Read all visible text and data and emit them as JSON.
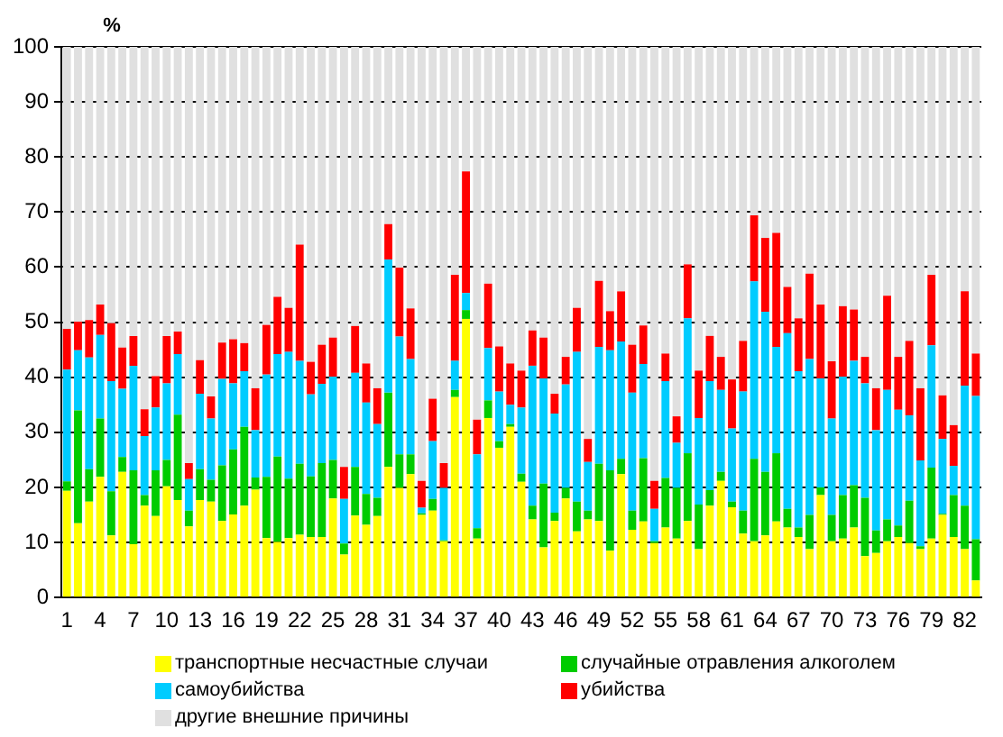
{
  "chart_data": {
    "type": "bar",
    "stacked": true,
    "ylabel": "%",
    "ylim": [
      0,
      100
    ],
    "yticks": [
      0,
      10,
      20,
      30,
      40,
      50,
      60,
      70,
      80,
      90,
      100
    ],
    "grid": "y",
    "legend": "bottom",
    "categories": [
      "1",
      null,
      null,
      "4",
      null,
      null,
      "7",
      null,
      null,
      "10",
      null,
      null,
      "13",
      null,
      null,
      "16",
      null,
      null,
      "19",
      null,
      null,
      "22",
      null,
      null,
      "25",
      null,
      null,
      "28",
      null,
      null,
      "31",
      null,
      null,
      "34",
      null,
      null,
      "37",
      null,
      null,
      "40",
      null,
      null,
      "43",
      null,
      null,
      "46",
      null,
      null,
      "49",
      null,
      null,
      "52",
      null,
      null,
      "55",
      null,
      null,
      "58",
      null,
      null,
      "61",
      null,
      null,
      "64",
      null,
      null,
      "67",
      null,
      null,
      "70",
      null,
      null,
      "73",
      null,
      null,
      "76",
      null,
      null,
      "79",
      null,
      null,
      "82",
      null
    ],
    "series": [
      {
        "name": "транспортные несчастные случаи",
        "color": "#ffff00",
        "values": [
          19.4,
          13.5,
          17.4,
          21.9,
          11.3,
          22.8,
          9.7,
          16.7,
          14.8,
          20.2,
          17.7,
          12.9,
          17.7,
          17.4,
          13.9,
          15.1,
          16.7,
          19.6,
          10.8,
          10.1,
          10.8,
          11.4,
          11.0,
          11.0,
          18.0,
          7.8,
          14.9,
          13.2,
          14.8,
          23.7,
          19.9,
          22.4,
          15.0,
          15.8,
          10.2,
          36.4,
          50.6,
          10.7,
          32.6,
          27.2,
          31.0,
          21.0,
          14.2,
          9.1,
          13.9,
          18.0,
          12.0,
          14.2,
          13.9,
          8.5,
          22.4,
          12.3,
          13.8,
          9.9,
          12.7,
          10.7,
          13.9,
          8.8,
          16.7,
          21.2,
          16.4,
          11.6,
          10.2,
          11.3,
          13.8,
          12.7,
          11.0,
          8.8,
          18.6,
          10.2,
          10.7,
          12.7,
          7.5,
          8.1,
          10.2,
          11.0,
          9.9,
          8.8,
          10.7,
          15.0,
          11.0,
          8.8,
          3.1
        ]
      },
      {
        "name": "случайные отравления алкоголем",
        "color": "#00cc00",
        "values": [
          1.7,
          20.5,
          5.9,
          10.6,
          8.0,
          2.7,
          13.4,
          1.9,
          8.3,
          4.8,
          15.5,
          2.9,
          5.6,
          4.0,
          10.1,
          11.8,
          14.3,
          2.2,
          11.1,
          15.5,
          10.8,
          12.9,
          11.0,
          13.4,
          7.0,
          2.0,
          8.8,
          5.6,
          3.3,
          13.5,
          6.1,
          3.6,
          0.3,
          2.1,
          0.2,
          1.3,
          1.6,
          1.9,
          3.2,
          1.2,
          0.5,
          1.5,
          2.5,
          11.6,
          1.5,
          1.9,
          5.4,
          1.6,
          10.4,
          14.6,
          2.8,
          3.5,
          11.5,
          0.3,
          9.0,
          9.2,
          12.3,
          8.1,
          2.8,
          1.6,
          1.0,
          4.2,
          15.0,
          11.5,
          12.4,
          3.4,
          1.7,
          6.2,
          1.4,
          4.8,
          7.9,
          7.7,
          10.6,
          4.1,
          4.0,
          2.1,
          7.7,
          0.5,
          12.9,
          0.2,
          7.6,
          7.9,
          7.5
        ]
      },
      {
        "name": "самоубийства",
        "color": "#00ccff",
        "values": [
          20.3,
          10.9,
          20.3,
          15.2,
          20.0,
          12.4,
          19.0,
          10.7,
          11.4,
          13.9,
          11.0,
          5.7,
          13.7,
          11.1,
          15.7,
          12.0,
          10.1,
          8.6,
          18.6,
          18.6,
          23.0,
          18.7,
          14.9,
          14.4,
          15.1,
          8.1,
          17.1,
          16.6,
          13.4,
          24.2,
          21.4,
          17.3,
          1.0,
          10.5,
          9.5,
          5.3,
          3.1,
          13.4,
          9.5,
          9.0,
          3.5,
          12.0,
          25.4,
          19.1,
          18.0,
          18.8,
          27.2,
          8.8,
          21.2,
          21.8,
          21.3,
          21.4,
          17.1,
          5.9,
          17.6,
          8.2,
          24.5,
          15.7,
          19.8,
          14.9,
          13.3,
          21.6,
          32.2,
          29.1,
          19.3,
          31.9,
          28.4,
          28.3,
          19.8,
          17.5,
          21.5,
          22.6,
          20.8,
          18.2,
          23.5,
          21.0,
          15.5,
          15.6,
          22.2,
          13.6,
          5.3,
          21.8,
          26.0
        ]
      },
      {
        "name": "убийства",
        "color": "#ff0000",
        "values": [
          7.4,
          5.2,
          6.8,
          5.5,
          10.5,
          7.5,
          5.4,
          4.9,
          5.7,
          8.6,
          4.1,
          2.9,
          6.1,
          4.0,
          6.6,
          8.0,
          5.1,
          7.6,
          9.0,
          10.4,
          8.0,
          21.1,
          5.9,
          7.1,
          7.1,
          5.8,
          8.5,
          7.1,
          6.5,
          6.4,
          12.5,
          9.2,
          4.9,
          7.7,
          4.5,
          15.6,
          22.1,
          6.3,
          11.7,
          8.2,
          7.5,
          6.7,
          6.4,
          7.4,
          3.6,
          5.0,
          8.0,
          4.2,
          12.0,
          7.1,
          9.1,
          8.7,
          7.0,
          5.1,
          5.0,
          4.8,
          9.8,
          8.6,
          8.2,
          6.0,
          8.9,
          9.2,
          12.0,
          13.4,
          20.7,
          8.4,
          9.6,
          15.5,
          13.4,
          10.4,
          12.8,
          9.3,
          4.8,
          7.6,
          17.1,
          9.6,
          13.5,
          13.1,
          12.8,
          7.9,
          7.4,
          17.1,
          7.7
        ]
      },
      {
        "name": "другие внешние причины",
        "color": "#e0e0e0",
        "values": [
          51.2,
          49.9,
          49.6,
          46.8,
          50.2,
          54.6,
          52.5,
          65.8,
          59.8,
          52.5,
          51.7,
          75.6,
          56.9,
          63.5,
          53.7,
          53.1,
          53.8,
          62.0,
          50.5,
          45.4,
          47.4,
          35.9,
          57.2,
          54.1,
          52.8,
          76.3,
          50.7,
          57.5,
          62.0,
          32.2,
          40.1,
          47.5,
          78.8,
          63.9,
          75.6,
          41.4,
          22.6,
          67.7,
          43.0,
          54.4,
          57.5,
          58.8,
          51.5,
          52.8,
          63.0,
          56.3,
          47.4,
          71.2,
          42.5,
          48.0,
          44.4,
          54.1,
          50.6,
          78.8,
          55.7,
          67.1,
          39.5,
          58.8,
          52.5,
          56.3,
          60.4,
          53.4,
          30.6,
          34.7,
          33.8,
          43.6,
          49.3,
          41.2,
          46.8,
          57.1,
          47.1,
          47.7,
          56.3,
          62.0,
          45.2,
          56.3,
          53.4,
          62.0,
          41.4,
          63.3,
          68.7,
          44.4,
          55.7
        ]
      }
    ]
  }
}
